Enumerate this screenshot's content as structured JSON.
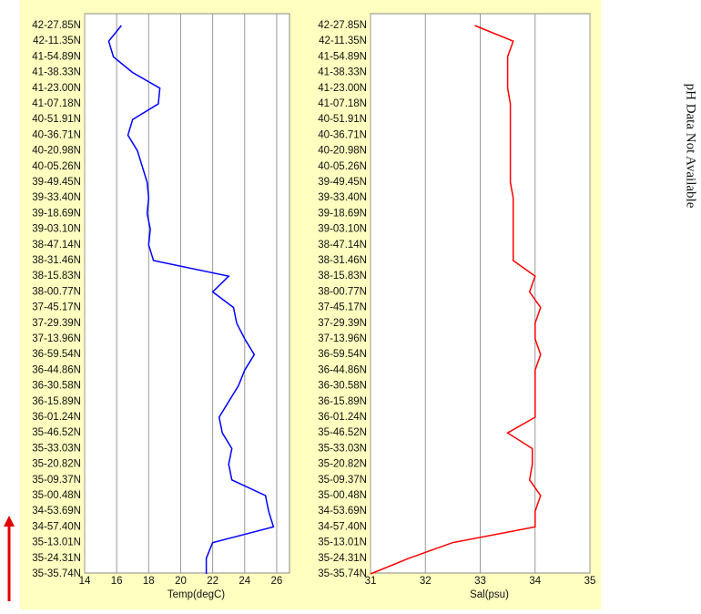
{
  "chart_data": [
    {
      "type": "line",
      "xlabel": "Temp(degC)",
      "color": "#0000ff",
      "categories": [
        "42-27.85N",
        "42-11.35N",
        "41-54.89N",
        "41-38.33N",
        "41-23.00N",
        "41-07.18N",
        "40-51.91N",
        "40-36.71N",
        "40-20.98N",
        "40-05.26N",
        "39-49.45N",
        "39-33.40N",
        "39-18.69N",
        "39-03.10N",
        "38-47.14N",
        "38-31.46N",
        "38-15.83N",
        "38-00.77N",
        "37-45.17N",
        "37-29.39N",
        "37-13.96N",
        "36-59.54N",
        "36-44.86N",
        "36-30.58N",
        "36-15.89N",
        "36-01.24N",
        "35-46.52N",
        "35-33.03N",
        "35-20.82N",
        "35-09.37N",
        "35-00.48N",
        "34-53.69N",
        "34-57.40N",
        "35-13.01N",
        "35-24.31N",
        "35-35.74N"
      ],
      "values": [
        16.3,
        15.5,
        15.8,
        17.0,
        18.7,
        18.6,
        17.0,
        16.7,
        17.3,
        17.6,
        17.9,
        18.0,
        17.9,
        18.1,
        18.0,
        18.3,
        23.0,
        22.0,
        23.3,
        23.5,
        24.0,
        24.6,
        24.0,
        23.6,
        23.0,
        22.4,
        22.6,
        23.2,
        23.0,
        23.2,
        25.3,
        25.5,
        25.8,
        22.0,
        21.6,
        21.6
      ],
      "xlim": [
        14,
        26.8
      ],
      "xticks": [
        14,
        16,
        18,
        20,
        22,
        24,
        26
      ],
      "grid": true
    },
    {
      "type": "line",
      "xlabel": "Sal(psu)",
      "color": "#ff0000",
      "categories": [
        "42-27.85N",
        "42-11.35N",
        "41-54.89N",
        "41-38.33N",
        "41-23.00N",
        "41-07.18N",
        "40-51.91N",
        "40-36.71N",
        "40-20.98N",
        "40-05.26N",
        "39-49.45N",
        "39-33.40N",
        "39-18.69N",
        "39-03.10N",
        "38-47.14N",
        "38-31.46N",
        "38-15.83N",
        "38-00.77N",
        "37-45.17N",
        "37-29.39N",
        "37-13.96N",
        "36-59.54N",
        "36-44.86N",
        "36-30.58N",
        "36-15.89N",
        "36-01.24N",
        "35-46.52N",
        "35-33.03N",
        "35-20.82N",
        "35-09.37N",
        "35-00.48N",
        "34-53.69N",
        "34-57.40N",
        "35-13.01N",
        "35-24.31N",
        "35-35.74N"
      ],
      "values": [
        32.9,
        33.6,
        33.5,
        33.5,
        33.5,
        33.55,
        33.55,
        33.55,
        33.55,
        33.55,
        33.55,
        33.6,
        33.6,
        33.6,
        33.6,
        33.6,
        34.0,
        33.9,
        34.1,
        34.0,
        34.0,
        34.1,
        34.0,
        34.0,
        34.0,
        34.0,
        33.5,
        33.95,
        33.95,
        33.9,
        34.1,
        34.0,
        34.0,
        32.5,
        31.7,
        31.0
      ],
      "xlim": [
        31,
        35
      ],
      "xticks": [
        31,
        32,
        33,
        34,
        35
      ],
      "grid": true
    }
  ],
  "side_note": "pH Data Not Available"
}
